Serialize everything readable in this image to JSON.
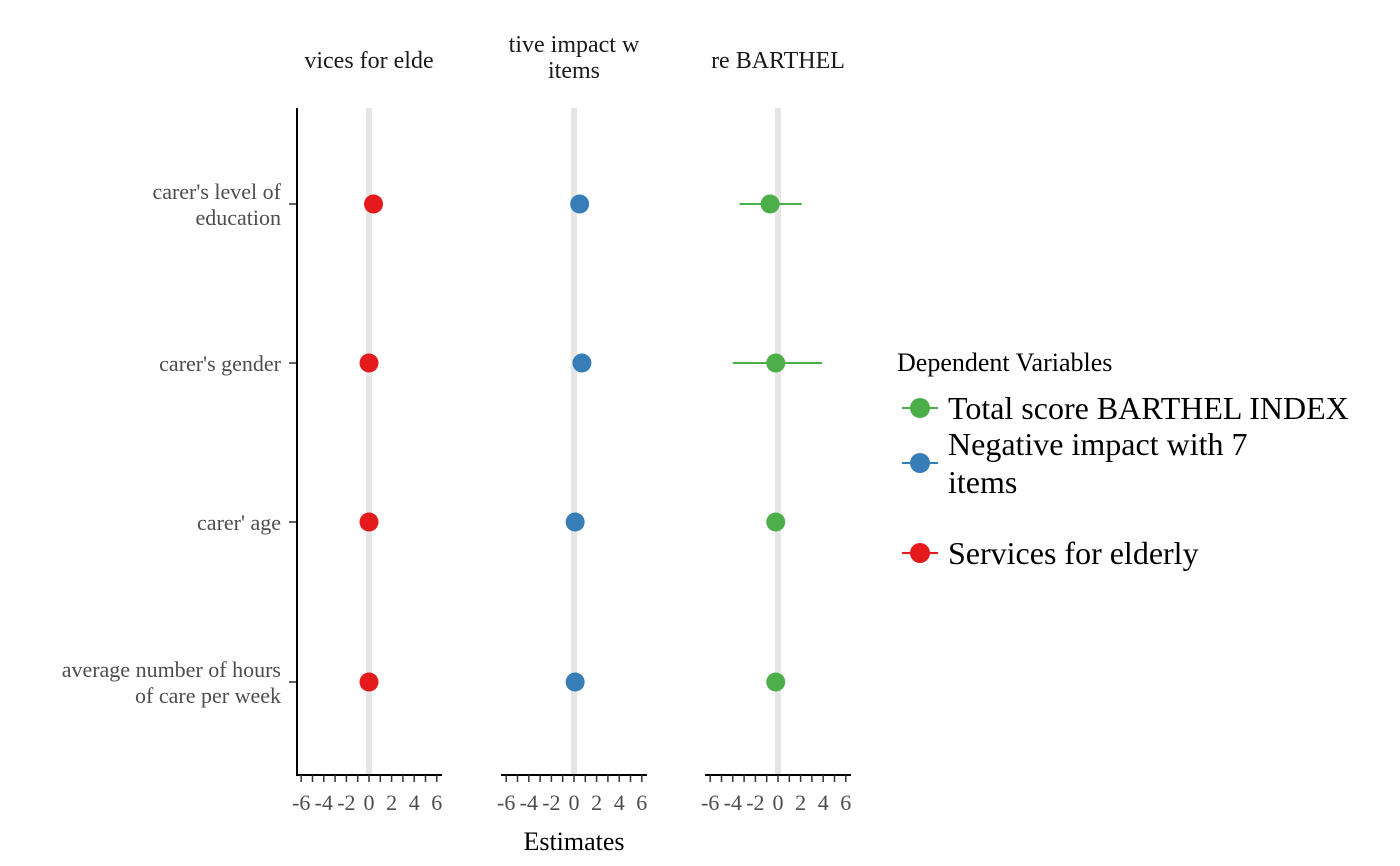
{
  "chart_data": {
    "type": "scatter",
    "subtype": "forest-plot-faceted",
    "xlabel": "Estimates",
    "x_ticks": [
      "-6",
      "-4",
      "-2",
      "0",
      "2",
      "4",
      "6"
    ],
    "xlim": [
      -6.5,
      6.5
    ],
    "reference_line": 0,
    "predictors": [
      "carer's level of\neducation",
      "carer's gender",
      "carer' age",
      "average number of hours\nof care per week"
    ],
    "facets": [
      {
        "title": "Services for elderly",
        "title_visible": "vices for elde",
        "title_lines": [],
        "color": "#e41a1c",
        "estimates": [
          0.4,
          0.0,
          0.0,
          0.0
        ],
        "ci_low": [
          0.4,
          0.0,
          0.0,
          0.0
        ],
        "ci_high": [
          0.4,
          0.0,
          0.0,
          0.0
        ]
      },
      {
        "title": "Negative impact with 7 items",
        "title_visible": "tive impact w",
        "title_lines": [
          "items"
        ],
        "color": "#377eb8",
        "estimates": [
          0.5,
          0.7,
          0.1,
          0.1
        ],
        "ci_low": [
          0.5,
          0.7,
          0.1,
          0.1
        ],
        "ci_high": [
          0.5,
          0.7,
          0.1,
          0.1
        ]
      },
      {
        "title": "Total score BARTHEL INDEX",
        "title_visible": "re BARTHEL",
        "title_lines": [],
        "color": "#4daf4a",
        "estimates": [
          -0.7,
          -0.2,
          -0.2,
          -0.2
        ],
        "ci_low": [
          -3.4,
          -4.0,
          -0.2,
          -0.2
        ],
        "ci_high": [
          2.1,
          3.9,
          -0.2,
          -0.2
        ]
      }
    ],
    "legend": {
      "title": "Dependent Variables",
      "position": "right",
      "entries": [
        {
          "label_lines": [
            "Total score BARTHEL INDEX"
          ],
          "color": "#4daf4a"
        },
        {
          "label_lines": [
            "Negative impact with 7",
            "items"
          ],
          "color": "#377eb8"
        },
        {
          "label_lines": [
            "Services for elderly"
          ],
          "color": "#e41a1c"
        }
      ]
    },
    "grid": false
  }
}
